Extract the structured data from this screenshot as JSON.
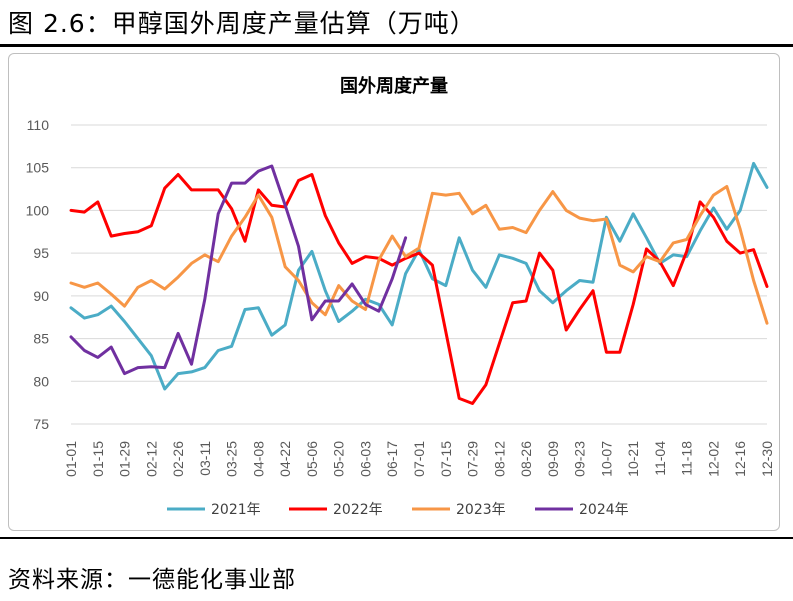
{
  "figure_title": "图 2.6：甲醇国外周度产量估算（万吨）",
  "source": "资料来源：一德能化事业部",
  "colors": {
    "s2021": "#4bacc6",
    "s2022": "#ff0000",
    "s2023": "#f79646",
    "s2024": "#7030a0",
    "grid": "#d9d9d9",
    "axis_text": "#595959"
  },
  "chart_data": {
    "type": "line",
    "title": "国外周度产量",
    "xlabel": "",
    "ylabel": "",
    "ylim": [
      75,
      110
    ],
    "yticks": [
      75,
      80,
      85,
      90,
      95,
      100,
      105,
      110
    ],
    "grid": true,
    "legend_position": "bottom",
    "x": [
      "01-01",
      "01-08",
      "01-15",
      "01-22",
      "01-29",
      "02-05",
      "02-12",
      "02-19",
      "02-26",
      "03-04",
      "03-11",
      "03-18",
      "03-25",
      "04-01",
      "04-08",
      "04-15",
      "04-22",
      "04-29",
      "05-06",
      "05-13",
      "05-20",
      "05-27",
      "06-03",
      "06-10",
      "06-17",
      "06-24",
      "07-01",
      "07-08",
      "07-15",
      "07-22",
      "07-29",
      "08-05",
      "08-12",
      "08-19",
      "08-26",
      "09-02",
      "09-09",
      "09-16",
      "09-23",
      "09-30",
      "10-07",
      "10-14",
      "10-21",
      "10-28",
      "11-04",
      "11-11",
      "11-18",
      "11-25",
      "12-02",
      "12-09",
      "12-16",
      "12-23",
      "12-30"
    ],
    "x_tick_labels": [
      "01-01",
      "01-15",
      "01-29",
      "02-12",
      "02-26",
      "03-11",
      "03-25",
      "04-08",
      "04-22",
      "05-06",
      "05-20",
      "06-03",
      "06-17",
      "07-01",
      "07-15",
      "07-29",
      "08-12",
      "08-26",
      "09-09",
      "09-23",
      "10-07",
      "10-21",
      "11-04",
      "11-18",
      "12-02",
      "12-16",
      "12-30"
    ],
    "series": [
      {
        "name": "2021年",
        "color_key": "s2021",
        "values": [
          88.6,
          87.4,
          87.8,
          88.8,
          87.0,
          85.0,
          83.0,
          79.1,
          80.9,
          81.1,
          81.6,
          83.6,
          84.1,
          88.4,
          88.6,
          85.4,
          86.6,
          93.0,
          95.2,
          90.6,
          87.0,
          88.2,
          89.6,
          89.0,
          86.6,
          92.6,
          95.4,
          92.0,
          91.2,
          96.8,
          93.0,
          91.0,
          94.8,
          94.4,
          93.8,
          90.6,
          89.2,
          90.6,
          91.8,
          91.6,
          99.2,
          96.4,
          99.6,
          96.8,
          93.8,
          94.8,
          94.6,
          97.6,
          100.3,
          97.8,
          100.0,
          105.5,
          102.7
        ]
      },
      {
        "name": "2022年",
        "color_key": "s2022",
        "values": [
          100.0,
          99.8,
          101.0,
          97.0,
          97.3,
          97.5,
          98.2,
          102.6,
          104.2,
          102.4,
          102.4,
          102.4,
          100.2,
          96.4,
          102.4,
          100.6,
          100.4,
          103.5,
          104.2,
          99.4,
          96.2,
          93.8,
          94.6,
          94.4,
          93.6,
          94.4,
          95.0,
          93.6,
          85.8,
          78.0,
          77.4,
          79.6,
          84.4,
          89.2,
          89.4,
          95.0,
          93.0,
          86.0,
          88.4,
          90.6,
          83.4,
          83.4,
          89.0,
          95.5,
          94.0,
          91.2,
          95.2,
          101.0,
          99.2,
          96.4,
          95.0,
          95.4,
          91.1
        ]
      },
      {
        "name": "2023年",
        "color_key": "s2023",
        "values": [
          91.5,
          91.0,
          91.5,
          90.2,
          88.8,
          91.0,
          91.8,
          90.8,
          92.2,
          93.8,
          94.8,
          94.0,
          97.0,
          99.2,
          101.8,
          99.2,
          93.4,
          91.8,
          89.2,
          87.8,
          91.2,
          89.4,
          88.4,
          94.2,
          97.0,
          94.6,
          95.6,
          102.0,
          101.8,
          102.0,
          99.6,
          100.6,
          97.8,
          98.0,
          97.4,
          100.0,
          102.2,
          100.0,
          99.1,
          98.8,
          99.0,
          93.6,
          92.8,
          94.6,
          94.0,
          96.2,
          96.6,
          99.4,
          101.8,
          102.8,
          97.8,
          91.8,
          86.8
        ]
      },
      {
        "name": "2024年",
        "color_key": "s2024",
        "values": [
          85.2,
          83.6,
          82.8,
          84.0,
          80.9,
          81.6,
          81.7,
          81.6,
          85.6,
          82.0,
          89.6,
          99.6,
          103.2,
          103.2,
          104.6,
          105.2,
          100.6,
          95.8,
          87.2,
          89.4,
          89.4,
          91.4,
          89.0,
          88.2,
          92.0,
          96.8,
          null,
          null,
          null,
          null,
          null,
          null,
          null,
          null,
          null,
          null,
          null,
          null,
          null,
          null,
          null,
          null,
          null,
          null,
          null,
          null,
          null,
          null,
          null,
          null,
          null,
          null,
          null
        ]
      }
    ]
  }
}
